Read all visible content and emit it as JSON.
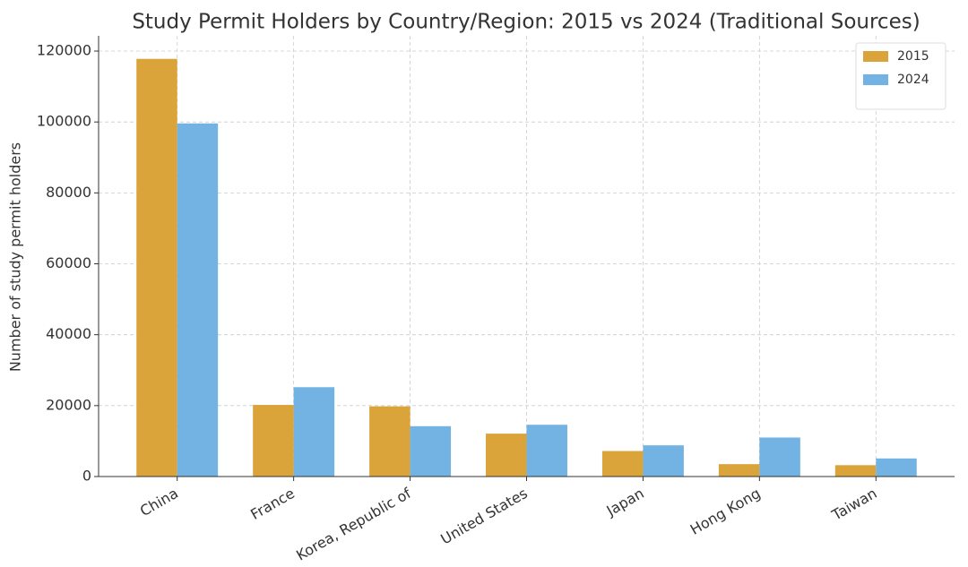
{
  "chart_data": {
    "type": "bar",
    "title": "Study Permit Holders by Country/Region: 2015 vs 2024 (Traditional Sources)",
    "y_label": "Number of study permit holders",
    "categories": [
      "China",
      "France",
      "Korea, Republic of",
      "United States",
      "Japan",
      "Hong Kong",
      "Taiwan"
    ],
    "series": [
      {
        "name": "2015",
        "color": "#dba43a",
        "values": [
          117800,
          20200,
          19800,
          12100,
          7200,
          3500,
          3200
        ]
      },
      {
        "name": "2024",
        "color": "#72b3e3",
        "values": [
          99600,
          25200,
          14200,
          14600,
          8800,
          11000,
          5100
        ]
      }
    ],
    "ylim": [
      0,
      124300
    ],
    "yticks": [
      0,
      20000,
      40000,
      60000,
      80000,
      100000,
      120000
    ],
    "grid": true,
    "legend": "upper right"
  }
}
